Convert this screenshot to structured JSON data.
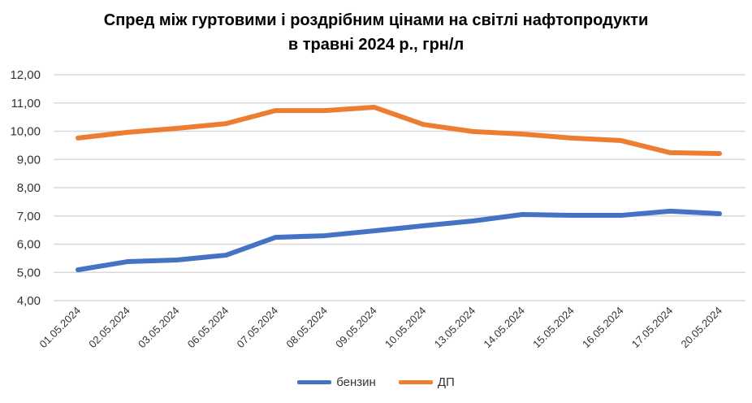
{
  "chart_data": {
    "type": "line",
    "title": [
      "Спред між гуртовими і роздрібним цінами на світлі нафтопродукти",
      "в травні 2024 р., грн/л"
    ],
    "categories": [
      "01.05.2024",
      "02.05.2024",
      "03.05.2024",
      "06.05.2024",
      "07.05.2024",
      "08.05.2024",
      "09.05.2024",
      "10.05.2024",
      "13.05.2024",
      "14.05.2024",
      "15.05.2024",
      "16.05.2024",
      "17.05.2024",
      "20.05.2024"
    ],
    "series": [
      {
        "name": "бензин",
        "color": "#4472C4",
        "values": [
          5.09,
          5.38,
          5.44,
          5.61,
          6.24,
          6.3,
          6.47,
          6.65,
          6.82,
          7.05,
          7.02,
          7.02,
          7.17,
          7.08
        ]
      },
      {
        "name": "ДП",
        "color": "#ED7D31",
        "values": [
          9.76,
          9.96,
          10.1,
          10.27,
          10.73,
          10.73,
          10.85,
          10.24,
          9.99,
          9.9,
          9.76,
          9.67,
          9.24,
          9.21
        ]
      }
    ],
    "yticks": [
      "4,00",
      "5,00",
      "6,00",
      "7,00",
      "8,00",
      "9,00",
      "10,00",
      "11,00",
      "12,00"
    ],
    "ylim": [
      4,
      12
    ],
    "grid": true,
    "legend": "bottom"
  }
}
